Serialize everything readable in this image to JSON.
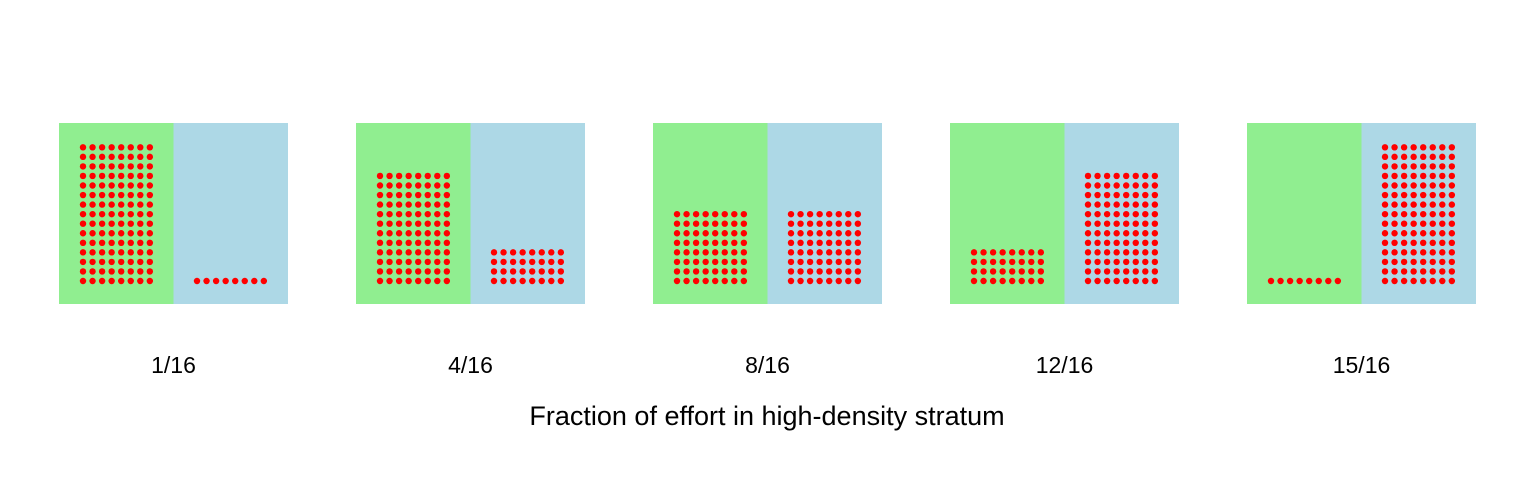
{
  "figure": {
    "xlabel": "Fraction of effort in high-density stratum",
    "colors": {
      "left_stratum": "#90EE90",
      "right_stratum": "#ADD8E6",
      "point": "#FF0000"
    },
    "panels": [
      {
        "label": "1/16",
        "left_rows": 15,
        "right_rows": 1
      },
      {
        "label": "4/16",
        "left_rows": 12,
        "right_rows": 4
      },
      {
        "label": "8/16",
        "left_rows": 8,
        "right_rows": 8
      },
      {
        "label": "12/16",
        "left_rows": 4,
        "right_rows": 12
      },
      {
        "label": "15/16",
        "left_rows": 1,
        "right_rows": 15
      }
    ],
    "columns_per_block": 8
  }
}
